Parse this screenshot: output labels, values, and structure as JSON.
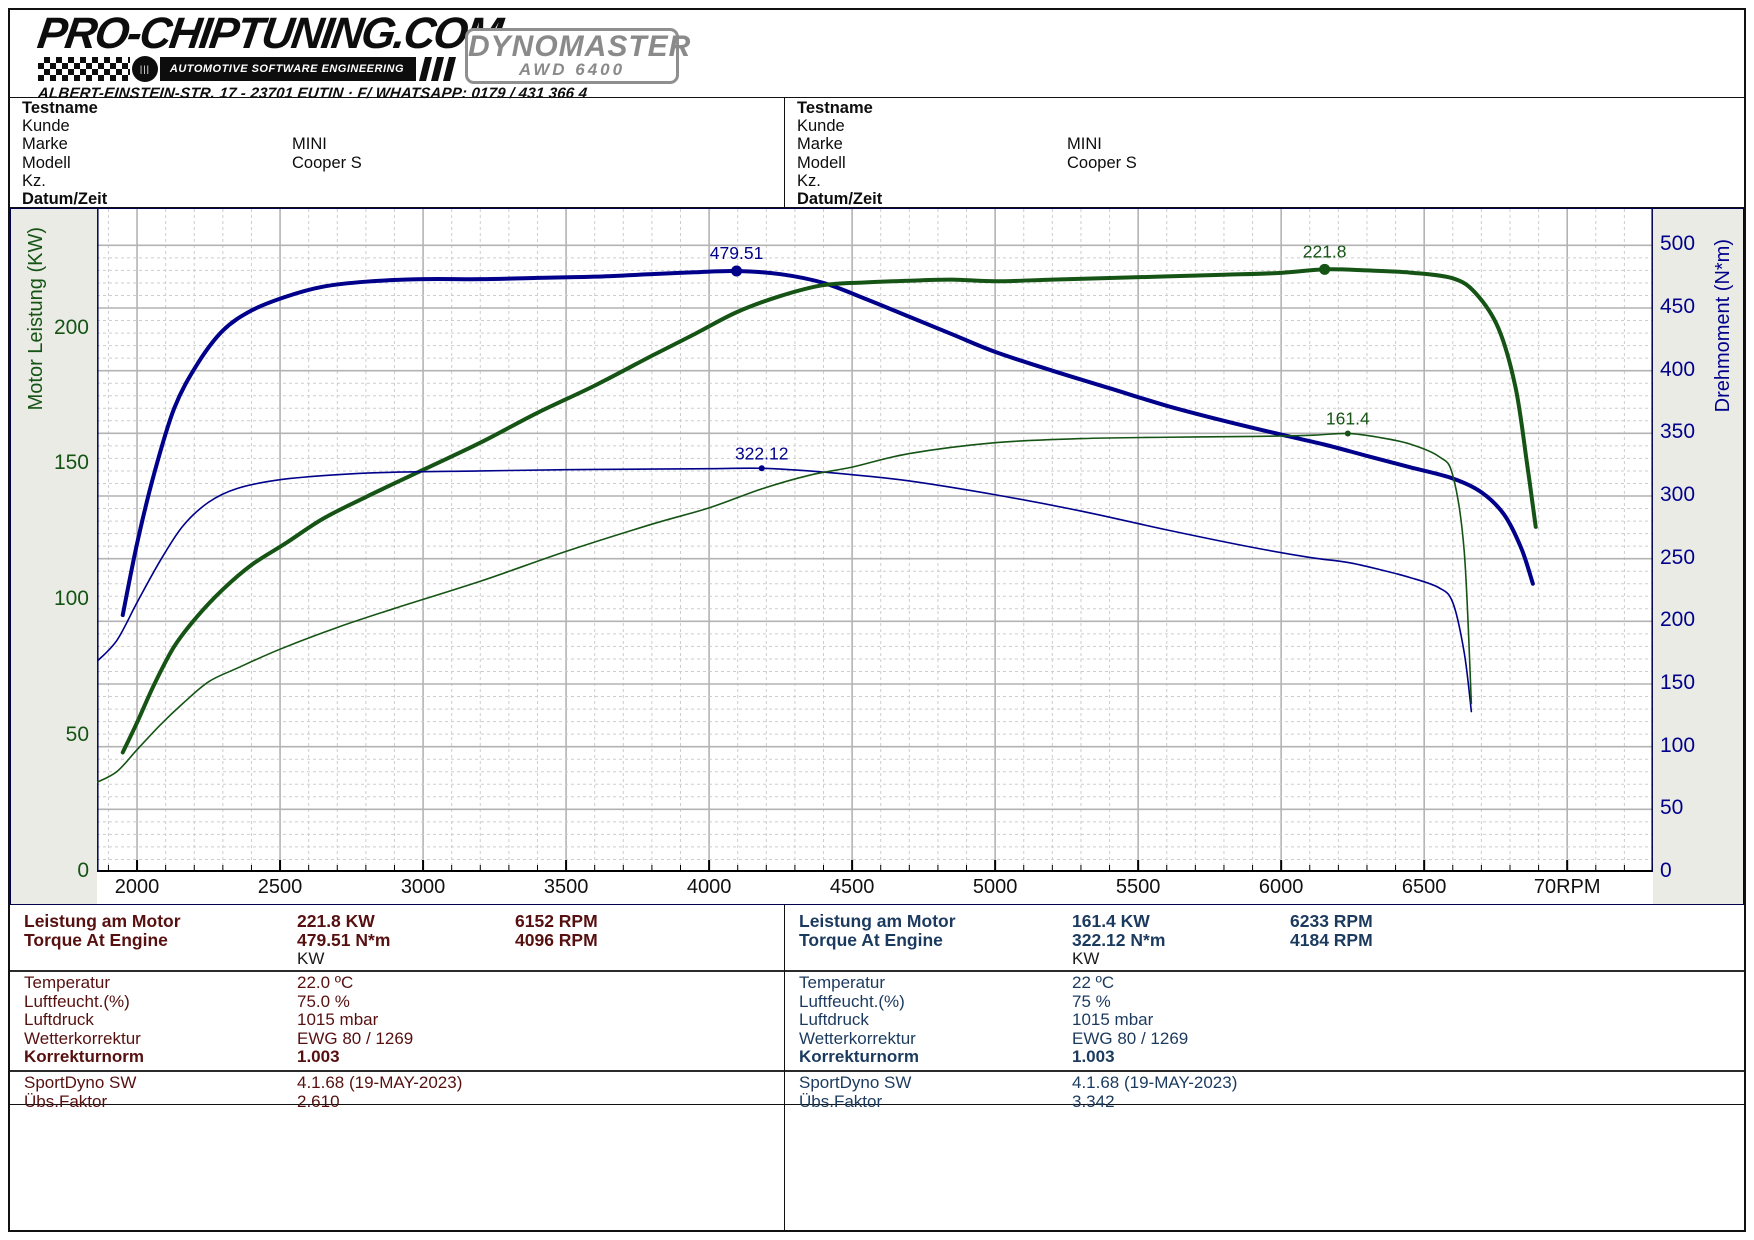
{
  "header": {
    "brand": "PRO-CHIPTUNING.COM",
    "brand_sub": "AUTOMOTIVE SOFTWARE ENGINEERING",
    "address": "ALBERT-EINSTEIN-STR. 17 - 23701 EUTIN · F/ WHATSAPP: 0179 / 431 366 4",
    "device": "DYNOMASTER",
    "device_sub": "AWD 6400"
  },
  "info_panels": [
    {
      "rows": [
        {
          "label": "Testname",
          "value": "",
          "bold": true
        },
        {
          "label": "Kunde",
          "value": "",
          "bold": false
        },
        {
          "label": "Marke",
          "value": "MINI",
          "bold": false
        },
        {
          "label": "Modell",
          "value": "Cooper S",
          "bold": false
        },
        {
          "label": "Kz.",
          "value": "",
          "bold": false
        },
        {
          "label": "Datum/Zeit",
          "value": "",
          "bold": true
        }
      ]
    },
    {
      "rows": [
        {
          "label": "Testname",
          "value": "",
          "bold": true
        },
        {
          "label": "Kunde",
          "value": "",
          "bold": false
        },
        {
          "label": "Marke",
          "value": "MINI",
          "bold": false
        },
        {
          "label": "Modell",
          "value": "Cooper S",
          "bold": false
        },
        {
          "label": "Kz.",
          "value": "",
          "bold": false
        },
        {
          "label": "Datum/Zeit",
          "value": "",
          "bold": true
        }
      ]
    }
  ],
  "results": [
    {
      "color": "#571010",
      "power_row": {
        "label": "Leistung am Motor",
        "value": "221.8 KW",
        "rpm": "6152 RPM"
      },
      "torque_row": {
        "label": "Torque At Engine",
        "value": "479.51 N*m",
        "rpm": "4096 RPM"
      },
      "unit_row": "KW",
      "env": [
        {
          "label": "Temperatur",
          "value": "22.0 ºC",
          "bold": false
        },
        {
          "label": "Luftfeucht.(%)",
          "value": "75.0 %",
          "bold": false
        },
        {
          "label": "Luftdruck",
          "value": "1015 mbar",
          "bold": false
        },
        {
          "label": "Wetterkorrektur",
          "value": "EWG 80 / 1269",
          "bold": false
        },
        {
          "label": "Korrekturnorm",
          "value": "1.003",
          "bold": true
        }
      ],
      "sw": [
        {
          "label": "SportDyno SW",
          "value": "4.1.68 (19-MAY-2023)"
        },
        {
          "label": "Übs.Faktor",
          "value": "2.610"
        }
      ]
    },
    {
      "color": "#1b3a5e",
      "power_row": {
        "label": "Leistung am Motor",
        "value": "161.4 KW",
        "rpm": "6233 RPM"
      },
      "torque_row": {
        "label": "Torque At Engine",
        "value": "322.12 N*m",
        "rpm": "4184 RPM"
      },
      "unit_row": "KW",
      "env": [
        {
          "label": "Temperatur",
          "value": "22 ºC",
          "bold": false
        },
        {
          "label": "Luftfeucht.(%)",
          "value": "75 %",
          "bold": false
        },
        {
          "label": "Luftdruck",
          "value": "1015 mbar",
          "bold": false
        },
        {
          "label": "Wetterkorrektur",
          "value": "EWG 80 / 1269",
          "bold": false
        },
        {
          "label": "Korrekturnorm",
          "value": "1.003",
          "bold": true
        }
      ],
      "sw": [
        {
          "label": "SportDyno SW",
          "value": "4.1.68 (19-MAY-2023)"
        },
        {
          "label": "Übs.Faktor",
          "value": "3.342"
        }
      ]
    }
  ],
  "chart_data": {
    "type": "line",
    "x": {
      "min": 1860,
      "max": 7300,
      "unit": "RPM",
      "major": 500,
      "minor": 100,
      "ticks": [
        {
          "v": 2000,
          "t": "2000"
        },
        {
          "v": 2500,
          "t": "2500"
        },
        {
          "v": 3000,
          "t": "3000"
        },
        {
          "v": 3500,
          "t": "3500"
        },
        {
          "v": 4000,
          "t": "4000"
        },
        {
          "v": 4500,
          "t": "4500"
        },
        {
          "v": 5000,
          "t": "5000"
        },
        {
          "v": 5500,
          "t": "5500"
        },
        {
          "v": 6000,
          "t": "6000"
        },
        {
          "v": 6500,
          "t": "6500"
        },
        {
          "v": 7000,
          "t": "70RPM"
        }
      ]
    },
    "y_left": {
      "title": "Motor Leistung (KW)",
      "min": 0,
      "max": 244,
      "ticks": [
        0,
        50,
        100,
        150,
        200
      ],
      "color": "#155415"
    },
    "y_right": {
      "title": "Drehmoment (N*m)",
      "min": 0,
      "max": 529,
      "ticks": [
        0,
        50,
        100,
        150,
        200,
        250,
        300,
        350,
        400,
        450,
        500
      ],
      "color": "#00008b",
      "major": 50,
      "minor": 10
    },
    "grid": {
      "major": "#b3b3b3",
      "minor": "#cdcdcd"
    },
    "series": [
      {
        "name": "tuned-torque",
        "axis": "right",
        "color": "#00008b",
        "width": 4,
        "points": [
          [
            1950,
            205
          ],
          [
            2000,
            262
          ],
          [
            2060,
            318
          ],
          [
            2130,
            370
          ],
          [
            2210,
            405
          ],
          [
            2300,
            432
          ],
          [
            2400,
            448
          ],
          [
            2520,
            459
          ],
          [
            2650,
            467
          ],
          [
            2800,
            471
          ],
          [
            3000,
            473
          ],
          [
            3200,
            473
          ],
          [
            3400,
            474
          ],
          [
            3600,
            475
          ],
          [
            3800,
            477
          ],
          [
            3950,
            478.5
          ],
          [
            4096,
            479.5
          ],
          [
            4250,
            477
          ],
          [
            4400,
            470
          ],
          [
            4550,
            457
          ],
          [
            4700,
            443
          ],
          [
            4850,
            429
          ],
          [
            5000,
            415
          ],
          [
            5200,
            400
          ],
          [
            5400,
            386
          ],
          [
            5600,
            372
          ],
          [
            5800,
            360
          ],
          [
            6000,
            349
          ],
          [
            6152,
            341
          ],
          [
            6300,
            332
          ],
          [
            6450,
            323
          ],
          [
            6600,
            314
          ],
          [
            6700,
            303
          ],
          [
            6780,
            285
          ],
          [
            6840,
            258
          ],
          [
            6880,
            230
          ]
        ]
      },
      {
        "name": "tuned-power",
        "axis": "left",
        "color": "#155415",
        "width": 4,
        "points": [
          [
            1950,
            44
          ],
          [
            2000,
            55
          ],
          [
            2060,
            69
          ],
          [
            2130,
            83
          ],
          [
            2210,
            94
          ],
          [
            2300,
            104
          ],
          [
            2400,
            113
          ],
          [
            2520,
            121
          ],
          [
            2650,
            130
          ],
          [
            2800,
            138
          ],
          [
            3000,
            148
          ],
          [
            3200,
            158
          ],
          [
            3400,
            169
          ],
          [
            3600,
            179
          ],
          [
            3800,
            190
          ],
          [
            3950,
            198
          ],
          [
            4096,
            206
          ],
          [
            4250,
            212
          ],
          [
            4400,
            216
          ],
          [
            4550,
            217
          ],
          [
            4700,
            217.6
          ],
          [
            4850,
            218
          ],
          [
            5000,
            217.4
          ],
          [
            5200,
            218
          ],
          [
            5400,
            218.6
          ],
          [
            5600,
            219.2
          ],
          [
            5800,
            219.8
          ],
          [
            6000,
            220.5
          ],
          [
            6152,
            221.8
          ],
          [
            6300,
            221.4
          ],
          [
            6450,
            220.6
          ],
          [
            6600,
            218.5
          ],
          [
            6680,
            213
          ],
          [
            6760,
            200
          ],
          [
            6820,
            178
          ],
          [
            6860,
            150
          ],
          [
            6890,
            127
          ]
        ]
      },
      {
        "name": "stock-torque",
        "axis": "right",
        "color": "#00008b",
        "width": 1.6,
        "points": [
          [
            1860,
            168
          ],
          [
            1930,
            185
          ],
          [
            2000,
            215
          ],
          [
            2080,
            248
          ],
          [
            2160,
            276
          ],
          [
            2250,
            295
          ],
          [
            2350,
            306
          ],
          [
            2500,
            313
          ],
          [
            2700,
            317
          ],
          [
            2900,
            319
          ],
          [
            3200,
            320
          ],
          [
            3500,
            321
          ],
          [
            3800,
            321.5
          ],
          [
            4000,
            321.8
          ],
          [
            4184,
            322.1
          ],
          [
            4350,
            320
          ],
          [
            4500,
            317
          ],
          [
            4700,
            312
          ],
          [
            5000,
            301
          ],
          [
            5300,
            288
          ],
          [
            5600,
            273
          ],
          [
            5900,
            259
          ],
          [
            6100,
            251
          ],
          [
            6233,
            247
          ],
          [
            6350,
            241
          ],
          [
            6450,
            235
          ],
          [
            6550,
            227
          ],
          [
            6600,
            215
          ],
          [
            6640,
            175
          ],
          [
            6665,
            128
          ]
        ]
      },
      {
        "name": "stock-power",
        "axis": "left",
        "color": "#155415",
        "width": 1.6,
        "points": [
          [
            1860,
            33
          ],
          [
            1930,
            37
          ],
          [
            2000,
            45
          ],
          [
            2080,
            54
          ],
          [
            2160,
            62
          ],
          [
            2250,
            70
          ],
          [
            2350,
            75
          ],
          [
            2500,
            82
          ],
          [
            2700,
            90
          ],
          [
            2900,
            97
          ],
          [
            3200,
            107
          ],
          [
            3500,
            118
          ],
          [
            3800,
            128
          ],
          [
            4000,
            134
          ],
          [
            4184,
            141
          ],
          [
            4350,
            146
          ],
          [
            4500,
            149
          ],
          [
            4700,
            154
          ],
          [
            5000,
            158
          ],
          [
            5300,
            159.5
          ],
          [
            5600,
            160
          ],
          [
            5900,
            160.3
          ],
          [
            6100,
            160.7
          ],
          [
            6233,
            161.4
          ],
          [
            6350,
            159.8
          ],
          [
            6450,
            157.5
          ],
          [
            6550,
            153
          ],
          [
            6600,
            146
          ],
          [
            6640,
            118
          ],
          [
            6665,
            62
          ]
        ]
      }
    ],
    "markers": [
      {
        "label": "479.51",
        "x": 4096,
        "y": 479.51,
        "axis": "right",
        "color": "#00008b",
        "r": 5.5
      },
      {
        "label": "221.8",
        "x": 6152,
        "y": 221.8,
        "axis": "left",
        "color": "#155415",
        "r": 5.5
      },
      {
        "label": "322.12",
        "x": 4184,
        "y": 322.12,
        "axis": "right",
        "color": "#00008b",
        "r": 3
      },
      {
        "label": "161.4",
        "x": 6233,
        "y": 161.4,
        "axis": "left",
        "color": "#155415",
        "r": 3
      }
    ]
  }
}
